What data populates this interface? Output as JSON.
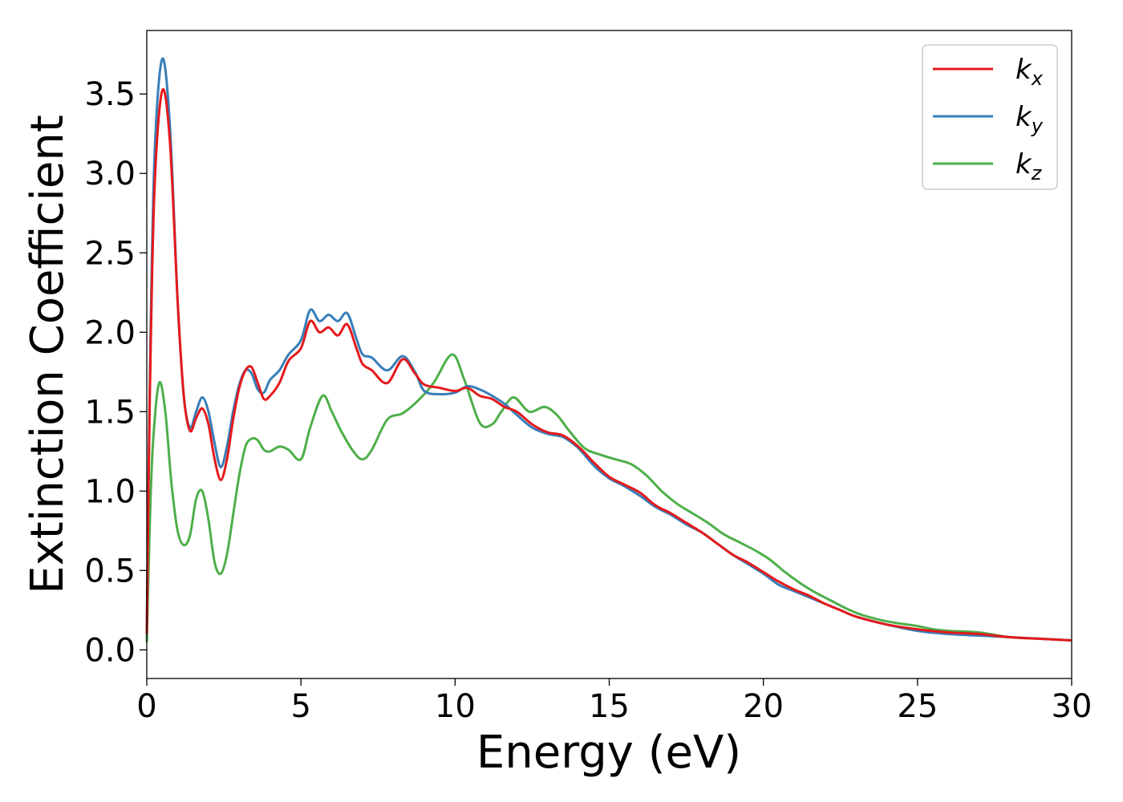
{
  "chart_data": {
    "type": "line",
    "xlabel": "Energy (eV)",
    "ylabel": "Extinction Coefficient",
    "xlim": [
      0,
      30
    ],
    "ylim": [
      -0.18,
      3.9
    ],
    "xticks": [
      "0",
      "5",
      "10",
      "15",
      "20",
      "25",
      "30"
    ],
    "yticks": [
      "0.0",
      "0.5",
      "1.0",
      "1.5",
      "2.0",
      "2.5",
      "3.0",
      "3.5"
    ],
    "grid": false,
    "legend_position": "top-right",
    "series": [
      {
        "name": "k",
        "subscript": "x",
        "color": "#e41a1c",
        "x": [
          0,
          0.1,
          0.25,
          0.5,
          0.75,
          1.0,
          1.2,
          1.4,
          1.6,
          1.8,
          2.0,
          2.2,
          2.4,
          2.6,
          2.8,
          3.0,
          3.2,
          3.4,
          3.6,
          3.8,
          4.0,
          4.3,
          4.6,
          5.0,
          5.3,
          5.6,
          5.9,
          6.2,
          6.5,
          6.8,
          7.0,
          7.3,
          7.8,
          8.3,
          8.7,
          9.0,
          9.5,
          10.0,
          10.4,
          10.8,
          11.2,
          11.6,
          12.0,
          12.5,
          13.0,
          13.5,
          14.0,
          14.5,
          15.0,
          15.5,
          16.0,
          16.5,
          17.0,
          17.5,
          18.0,
          18.5,
          19.0,
          19.5,
          20.0,
          20.5,
          21.0,
          21.5,
          22.0,
          22.5,
          23.0,
          24.0,
          25.0,
          26.0,
          27.0,
          28.0,
          29.0,
          30.0
        ],
        "values": [
          0.1,
          1.6,
          2.9,
          3.52,
          3.2,
          2.2,
          1.6,
          1.38,
          1.46,
          1.52,
          1.42,
          1.2,
          1.07,
          1.2,
          1.45,
          1.65,
          1.76,
          1.78,
          1.68,
          1.58,
          1.6,
          1.68,
          1.82,
          1.9,
          2.07,
          2.0,
          2.03,
          1.98,
          2.05,
          1.9,
          1.8,
          1.76,
          1.68,
          1.83,
          1.74,
          1.67,
          1.65,
          1.63,
          1.65,
          1.6,
          1.58,
          1.53,
          1.5,
          1.42,
          1.37,
          1.35,
          1.28,
          1.18,
          1.09,
          1.04,
          0.99,
          0.91,
          0.86,
          0.8,
          0.74,
          0.67,
          0.6,
          0.55,
          0.49,
          0.43,
          0.38,
          0.34,
          0.29,
          0.25,
          0.21,
          0.16,
          0.13,
          0.11,
          0.1,
          0.08,
          0.07,
          0.06
        ]
      },
      {
        "name": "k",
        "subscript": "y",
        "color": "#377eb8",
        "x": [
          0,
          0.1,
          0.25,
          0.5,
          0.75,
          1.0,
          1.2,
          1.4,
          1.6,
          1.8,
          2.0,
          2.2,
          2.4,
          2.6,
          2.8,
          3.0,
          3.2,
          3.4,
          3.6,
          3.8,
          4.0,
          4.3,
          4.6,
          5.0,
          5.3,
          5.6,
          5.9,
          6.2,
          6.5,
          6.8,
          7.0,
          7.3,
          7.8,
          8.3,
          8.7,
          9.0,
          9.5,
          10.0,
          10.4,
          10.8,
          11.2,
          11.6,
          12.0,
          12.5,
          13.0,
          13.5,
          14.0,
          14.5,
          15.0,
          15.5,
          16.0,
          16.5,
          17.0,
          17.5,
          18.0,
          18.5,
          19.0,
          19.5,
          20.0,
          20.5,
          21.0,
          21.5,
          22.0,
          22.5,
          23.0,
          24.0,
          25.0,
          26.0,
          27.0,
          28.0,
          29.0,
          30.0
        ],
        "values": [
          0.1,
          1.7,
          3.1,
          3.72,
          3.3,
          2.2,
          1.6,
          1.4,
          1.5,
          1.59,
          1.5,
          1.3,
          1.15,
          1.28,
          1.5,
          1.67,
          1.76,
          1.74,
          1.64,
          1.62,
          1.7,
          1.76,
          1.86,
          1.95,
          2.14,
          2.07,
          2.11,
          2.07,
          2.12,
          1.96,
          1.86,
          1.84,
          1.76,
          1.85,
          1.75,
          1.63,
          1.61,
          1.62,
          1.66,
          1.64,
          1.6,
          1.55,
          1.48,
          1.4,
          1.36,
          1.34,
          1.27,
          1.16,
          1.08,
          1.03,
          0.97,
          0.9,
          0.85,
          0.79,
          0.74,
          0.67,
          0.6,
          0.54,
          0.48,
          0.41,
          0.37,
          0.33,
          0.29,
          0.25,
          0.21,
          0.16,
          0.12,
          0.1,
          0.09,
          0.08,
          0.07,
          0.06
        ]
      },
      {
        "name": "k",
        "subscript": "z",
        "color": "#4daf4a",
        "x": [
          0,
          0.1,
          0.2,
          0.4,
          0.6,
          0.8,
          1.0,
          1.2,
          1.4,
          1.6,
          1.8,
          2.0,
          2.2,
          2.4,
          2.6,
          2.8,
          3.0,
          3.2,
          3.4,
          3.6,
          3.8,
          4.0,
          4.3,
          4.6,
          5.0,
          5.3,
          5.7,
          6.0,
          6.3,
          6.7,
          7.0,
          7.3,
          7.8,
          8.3,
          8.8,
          9.3,
          9.9,
          10.3,
          10.8,
          11.2,
          11.5,
          11.9,
          12.4,
          12.9,
          13.3,
          13.7,
          14.2,
          14.7,
          15.2,
          15.7,
          16.2,
          16.7,
          17.2,
          17.7,
          18.2,
          18.7,
          19.2,
          19.7,
          20.2,
          20.7,
          21.2,
          21.7,
          22.2,
          22.7,
          23.2,
          24.0,
          25.0,
          25.5,
          26.0,
          27.0,
          28.0,
          29.0,
          30.0
        ],
        "values": [
          0.05,
          0.8,
          1.3,
          1.68,
          1.5,
          1.05,
          0.75,
          0.66,
          0.72,
          0.95,
          1.0,
          0.82,
          0.55,
          0.48,
          0.6,
          0.85,
          1.1,
          1.28,
          1.33,
          1.32,
          1.26,
          1.25,
          1.28,
          1.26,
          1.2,
          1.4,
          1.6,
          1.5,
          1.38,
          1.25,
          1.2,
          1.26,
          1.45,
          1.49,
          1.57,
          1.68,
          1.86,
          1.7,
          1.43,
          1.42,
          1.5,
          1.59,
          1.5,
          1.53,
          1.48,
          1.38,
          1.27,
          1.23,
          1.2,
          1.17,
          1.1,
          1.0,
          0.92,
          0.86,
          0.8,
          0.73,
          0.68,
          0.63,
          0.57,
          0.49,
          0.42,
          0.36,
          0.31,
          0.26,
          0.22,
          0.18,
          0.15,
          0.13,
          0.12,
          0.11,
          0.08,
          0.07,
          0.06
        ]
      }
    ]
  }
}
